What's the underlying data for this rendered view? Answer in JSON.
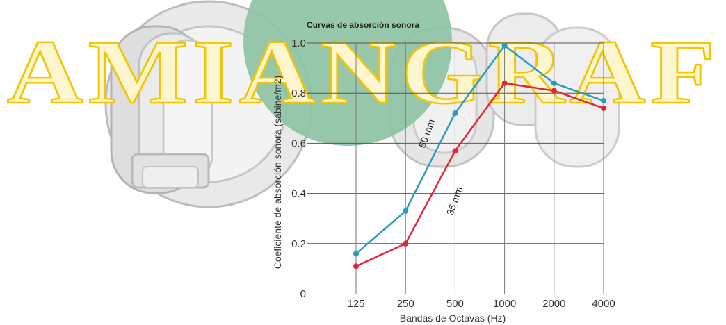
{
  "watermark": {
    "text": "AMIANGRAF",
    "colors": {
      "letter_fill": "#fdf6cf",
      "letter_stroke": "#f4c400",
      "emblem": "#8fc3a4",
      "roller_art": "#b9b9b9"
    },
    "icon": "roller-machinery-illustration"
  },
  "chart_data": {
    "type": "line",
    "title": "Curvas de absorción sonora",
    "xlabel": "Bandas de Octavas (Hz)",
    "ylabel": "Coeficiente de absorción sonora (sabine/m2)",
    "categories": [
      "125",
      "250",
      "500",
      "1000",
      "2000",
      "4000"
    ],
    "y_ticks": [
      "0",
      "0.2",
      "0.4",
      "0.6",
      "0.8",
      "1.0"
    ],
    "ylim": [
      0,
      1.0
    ],
    "grid": true,
    "legend": "none (labels placed on curves)",
    "series": [
      {
        "name": "50 mm",
        "color": "#2a9bc0",
        "values": [
          0.16,
          0.33,
          0.72,
          0.99,
          0.84,
          0.77
        ]
      },
      {
        "name": "35 mm",
        "color": "#e32636",
        "values": [
          0.11,
          0.2,
          0.57,
          0.84,
          0.81,
          0.74
        ]
      }
    ]
  }
}
